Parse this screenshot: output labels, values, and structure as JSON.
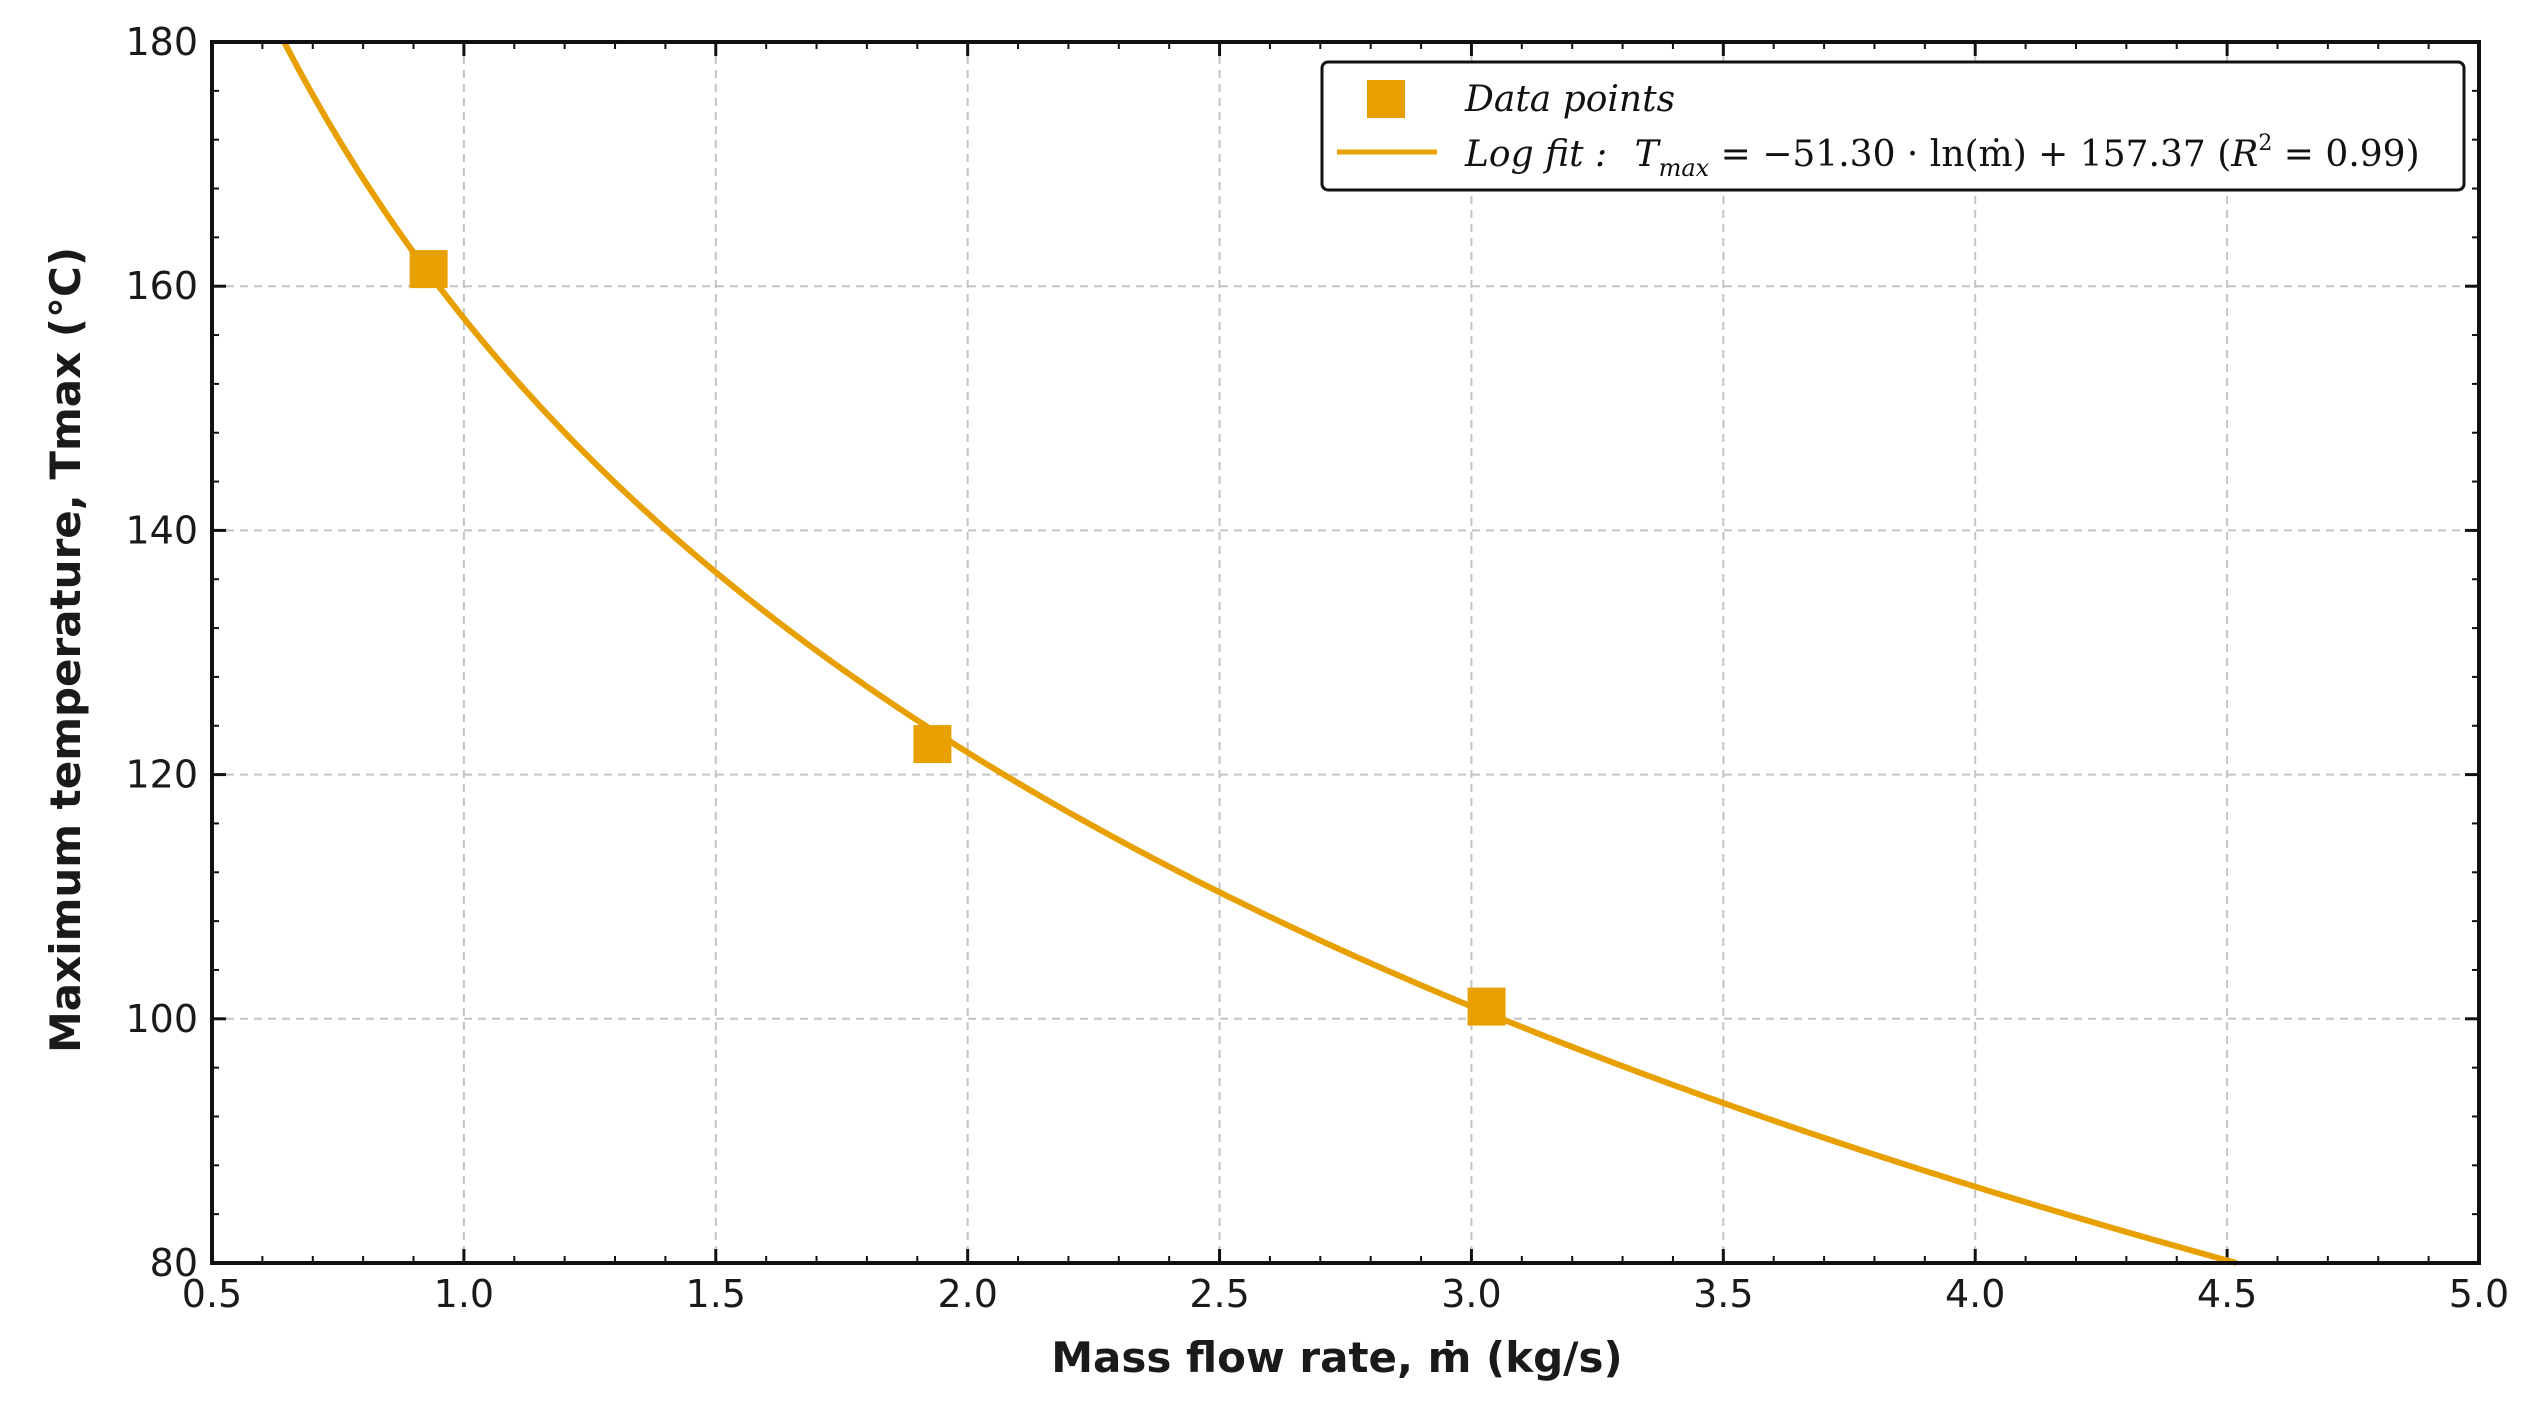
{
  "chart_data": {
    "type": "scatter",
    "title": "",
    "xlabel": "Mass flow rate, ṁ (kg/s)",
    "ylabel": "Maximum temperature, Tmax (°C)",
    "xlim": [
      0.5,
      5.0
    ],
    "ylim": [
      80,
      180
    ],
    "xticks": [
      "0.5",
      "1.0",
      "1.5",
      "2.0",
      "2.5",
      "3.0",
      "3.5",
      "4.0",
      "4.5",
      "5.0"
    ],
    "yticks": [
      "80",
      "100",
      "120",
      "140",
      "160",
      "180"
    ],
    "grid": true,
    "legend_position": "top-right",
    "series": [
      {
        "name": "Data points",
        "kind": "scatter",
        "marker": "square",
        "x": [
          0.93,
          1.93,
          3.03
        ],
        "y": [
          161.4,
          122.5,
          101.0
        ]
      },
      {
        "name": "Log fit",
        "kind": "line",
        "equation": "Tmax = -51.30 · ln(ṁ) + 157.37",
        "coef_a": -51.3,
        "coef_b": 157.37,
        "r2": 0.99
      }
    ],
    "legend": {
      "scatter_label": "Data points",
      "fit_label": "Log fit :",
      "fit_eq_T": "T",
      "fit_eq_sub": "max",
      "fit_eq_body": " = −51.30 · ln(ṁ) + 157.37 (",
      "fit_eq_R": "R",
      "fit_eq_sup": "2",
      "fit_eq_end": " = 0.99)"
    },
    "color": "#E8A000"
  }
}
